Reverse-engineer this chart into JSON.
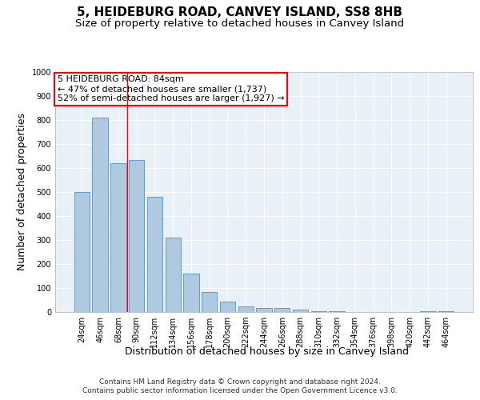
{
  "title": "5, HEIDEBURG ROAD, CANVEY ISLAND, SS8 8HB",
  "subtitle": "Size of property relative to detached houses in Canvey Island",
  "xlabel": "Distribution of detached houses by size in Canvey Island",
  "ylabel": "Number of detached properties",
  "footer_line1": "Contains HM Land Registry data © Crown copyright and database right 2024.",
  "footer_line2": "Contains public sector information licensed under the Open Government Licence v3.0.",
  "categories": [
    "24sqm",
    "46sqm",
    "68sqm",
    "90sqm",
    "112sqm",
    "134sqm",
    "156sqm",
    "178sqm",
    "200sqm",
    "222sqm",
    "244sqm",
    "266sqm",
    "288sqm",
    "310sqm",
    "332sqm",
    "354sqm",
    "376sqm",
    "398sqm",
    "420sqm",
    "442sqm",
    "464sqm"
  ],
  "values": [
    500,
    810,
    620,
    635,
    480,
    310,
    160,
    82,
    45,
    23,
    18,
    18,
    9,
    5,
    2,
    1,
    0,
    0,
    0,
    5,
    2
  ],
  "bar_color": "#afc9e1",
  "bar_edge_color": "#5b9bd5",
  "property_label": "5 HEIDEBURG ROAD: 84sqm",
  "annotation_line1": "← 47% of detached houses are smaller (1,737)",
  "annotation_line2": "52% of semi-detached houses are larger (1,927) →",
  "red_line_x": 2.5,
  "ylim": [
    0,
    1000
  ],
  "yticks": [
    0,
    100,
    200,
    300,
    400,
    500,
    600,
    700,
    800,
    900,
    1000
  ],
  "bg_color": "#e8f0f8",
  "grid_color": "#ffffff",
  "title_fontsize": 11,
  "subtitle_fontsize": 9.5,
  "axis_label_fontsize": 9,
  "tick_fontsize": 7,
  "footer_fontsize": 6.5,
  "annotation_fontsize": 8
}
